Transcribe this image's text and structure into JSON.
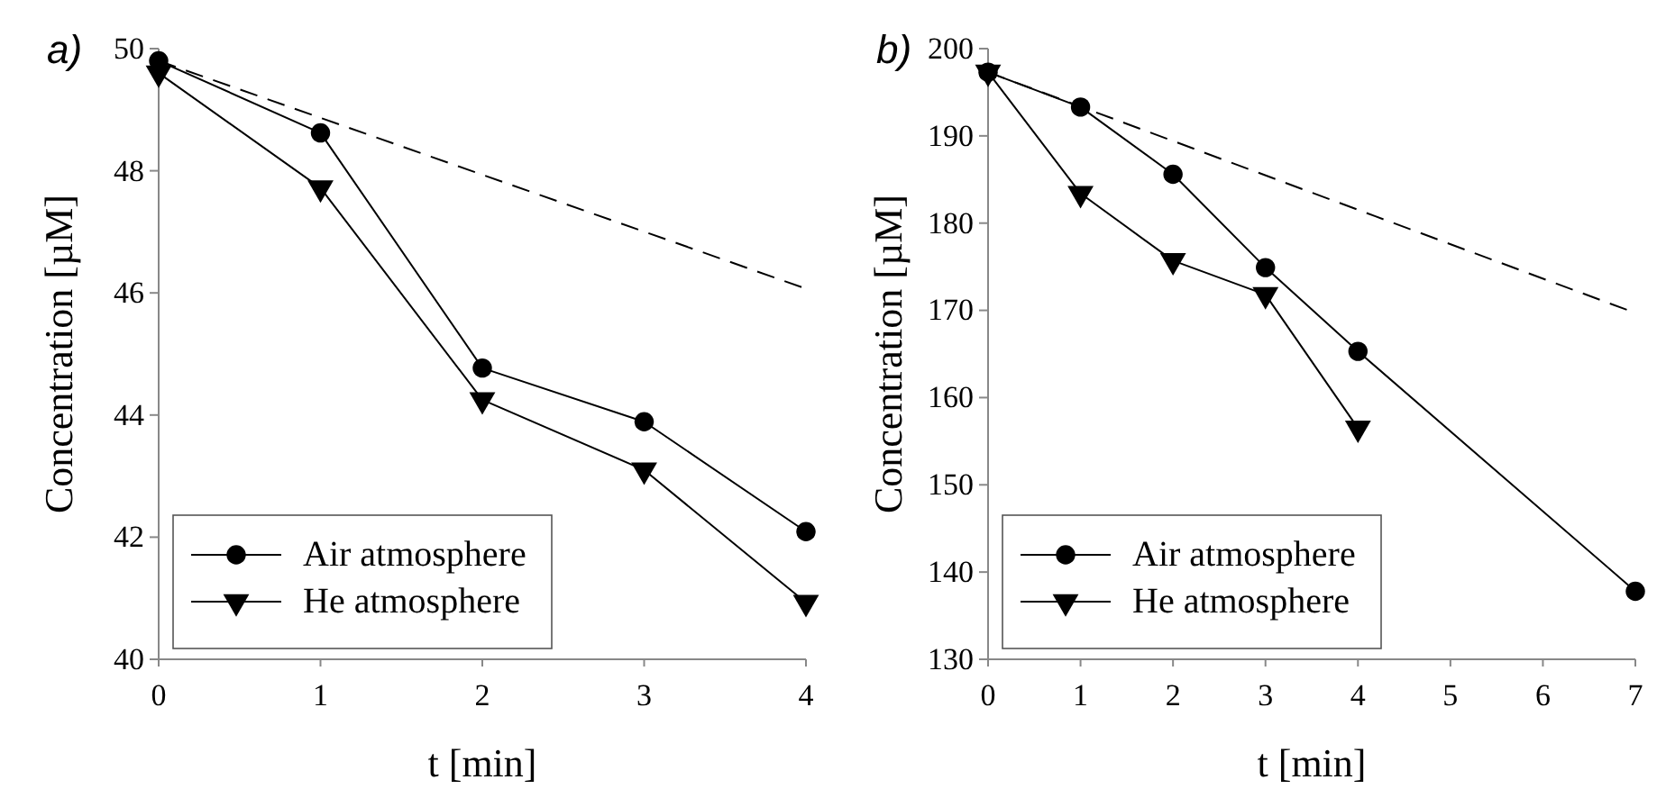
{
  "chart_data": [
    {
      "type": "line",
      "title": "a)",
      "xlabel": "t [min]",
      "ylabel": "Concentration [µM]",
      "xlim": [
        0,
        4
      ],
      "xticks": [
        0,
        1,
        2,
        3,
        4
      ],
      "ylim": [
        40,
        50
      ],
      "yticks": [
        40,
        42,
        44,
        46,
        48,
        50
      ],
      "legend": "bottom left",
      "series": [
        {
          "name": "Air atmosphere",
          "color": "#000000",
          "marker": "circle",
          "x": [
            0,
            1,
            2,
            3,
            4
          ],
          "values": [
            49.8,
            48.62,
            44.77,
            43.89,
            42.09
          ]
        },
        {
          "name": "He atmosphere",
          "color": "#000000",
          "marker": "triangle",
          "x": [
            0,
            1,
            2,
            3,
            4
          ],
          "values": [
            49.6,
            47.72,
            44.25,
            43.1,
            40.93
          ]
        },
        {
          "color": "#000000",
          "marker": "none",
          "line_style": "dashed",
          "x": [
            0,
            4
          ],
          "values": [
            49.8,
            46.07
          ]
        }
      ]
    },
    {
      "type": "line",
      "title": "b)",
      "xlabel": "t [min]",
      "ylabel": "Concentration [µM]",
      "xlim": [
        0,
        7
      ],
      "xticks": [
        0,
        1,
        2,
        3,
        4,
        5,
        6,
        7
      ],
      "ylim": [
        130,
        200
      ],
      "yticks": [
        130,
        140,
        150,
        160,
        170,
        180,
        190,
        200
      ],
      "legend": "bottom left",
      "series": [
        {
          "name": "Air atmosphere",
          "color": "#000000",
          "marker": "circle",
          "x": [
            0,
            1,
            2,
            3,
            4,
            7
          ],
          "values": [
            197.3,
            193.3,
            185.6,
            174.9,
            165.3,
            137.8
          ]
        },
        {
          "name": "He atmosphere",
          "color": "#000000",
          "marker": "triangle",
          "x": [
            0,
            1,
            2,
            3,
            4
          ],
          "values": [
            197.3,
            183.4,
            175.7,
            171.8,
            156.5
          ]
        },
        {
          "color": "#000000",
          "marker": "none",
          "line_style": "dashed",
          "x": [
            0,
            7
          ],
          "values": [
            197.3,
            169.7
          ]
        }
      ]
    }
  ]
}
